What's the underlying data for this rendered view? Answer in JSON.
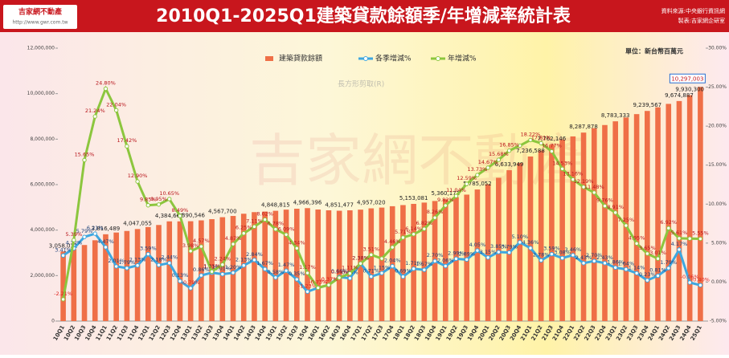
{
  "logo": {
    "name": "吉家網不動產",
    "url": "http://www.gwr.com.tw"
  },
  "source": [
    "資料來源:中央銀行資訊網",
    "製表:吉家網企研室"
  ],
  "watermark": "吉家網不動產",
  "tooltip": "長方形剪取(R)",
  "chart_data": {
    "type": "bar_line",
    "title": "2010Q1-2025Q1建築貸款餘額季/年增減率統計表",
    "unit": "單位：新台幣百萬元",
    "legend": "top",
    "grid": false,
    "categories": [
      "10Q1",
      "10Q2",
      "10Q3",
      "10Q4",
      "11Q1",
      "11Q2",
      "11Q3",
      "11Q4",
      "12Q1",
      "12Q2",
      "12Q3",
      "12Q4",
      "13Q1",
      "13Q2",
      "13Q3",
      "13Q4",
      "14Q1",
      "14Q2",
      "14Q3",
      "14Q4",
      "15Q1",
      "15Q2",
      "15Q3",
      "15Q4",
      "16Q1",
      "16Q2",
      "16Q3",
      "16Q4",
      "17Q1",
      "17Q2",
      "17Q3",
      "17Q4",
      "18Q1",
      "18Q2",
      "18Q3",
      "18Q4",
      "19Q1",
      "19Q2",
      "19Q3",
      "19Q4",
      "20Q1",
      "20Q2",
      "20Q3",
      "20Q4",
      "21Q1",
      "21Q2",
      "21Q3",
      "21Q4",
      "22Q1",
      "22Q2",
      "22Q3",
      "22Q4",
      "23Q1",
      "23Q2",
      "23Q3",
      "23Q4",
      "24Q1",
      "24Q2",
      "24Q3",
      "24Q4",
      "25Q1"
    ],
    "ylim": [
      0,
      12000000
    ],
    "yticks": [
      0,
      {
        "value": 2000000,
        "label": "2,000,000"
      },
      {
        "value": 4000000,
        "label": "4,000,000"
      },
      {
        "value": 6000000,
        "label": "6,000,000"
      },
      {
        "value": 8000000,
        "label": "8,000,000"
      },
      {
        "value": 10000000,
        "label": "10,000,000"
      },
      {
        "value": 12000000,
        "label": "12,000,000"
      }
    ],
    "y2lim": [
      -5,
      30
    ],
    "y2ticks": [
      {
        "value": -5,
        "label": "-5.00%"
      },
      {
        "value": 0,
        "label": "0.00%"
      },
      {
        "value": 5,
        "label": "5.00%"
      },
      {
        "value": 10,
        "label": "10.00%"
      },
      {
        "value": 15,
        "label": "15.00%"
      },
      {
        "value": 20,
        "label": "20.00%"
      },
      {
        "value": 25,
        "label": "25.00%"
      },
      {
        "value": 30,
        "label": "30.00%"
      }
    ],
    "series": [
      {
        "name": "建築貸款餘額",
        "kind": "bar",
        "color": "#ef6f47",
        "values": [
          3058031,
          3162000,
          3345000,
          3553000,
          3816489,
          3893000,
          3962000,
          4047055,
          4135000,
          4225000,
          4384667,
          4385000,
          4390546,
          4428000,
          4481000,
          4567700,
          4622000,
          4720000,
          4790000,
          4815000,
          4848815,
          4900000,
          4940000,
          4966396,
          4905000,
          4870000,
          4851477,
          4870000,
          4900000,
          4957020,
          4990000,
          5050000,
          5100000,
          5153081,
          5210000,
          5280000,
          5360171,
          5450000,
          5560000,
          5785052,
          6020000,
          6300000,
          6633949,
          6950000,
          7236588,
          7500000,
          7762146,
          7980000,
          8120000,
          8287878,
          8480000,
          8620000,
          8783333,
          8950000,
          9100000,
          9239567,
          9400000,
          9550000,
          9674887,
          9930300,
          10297003
        ],
        "value_labels": [
          "3,058,031",
          null,
          null,
          null,
          "3,816,489",
          null,
          null,
          "4,047,055",
          null,
          null,
          "4,384,667",
          null,
          "4,390,546",
          null,
          null,
          "4,567,700",
          null,
          null,
          null,
          null,
          "4,848,815",
          null,
          null,
          "4,966,396",
          null,
          null,
          "4,851,477",
          null,
          null,
          "4,957,020",
          null,
          null,
          null,
          "5,153,081",
          null,
          null,
          "5,360,171",
          null,
          null,
          "5,785,052",
          null,
          null,
          "6,633,949",
          null,
          "7,236,588",
          null,
          "7,762,146",
          null,
          null,
          "8,287,878",
          null,
          null,
          "8,783,333",
          null,
          null,
          "9,239,567",
          null,
          null,
          "9,674,887",
          "9,930,300",
          "10,297,003"
        ]
      },
      {
        "name": "各季增減%",
        "kind": "line",
        "axis": "y2",
        "color": "#3ea7e0",
        "values": [
          3.41,
          4.32,
          5.79,
          6.21,
          4.47,
          2.01,
          1.79,
          2.13,
          3.59,
          2.18,
          2.44,
          0.13,
          -0.79,
          0.86,
          1.21,
          1.01,
          1.2,
          2.13,
          2.84,
          1.67,
          0.58,
          1.47,
          0.35,
          -1.23,
          -0.73,
          -0.37,
          0.66,
          0.49,
          2.38,
          0.71,
          1.15,
          2.04,
          0.69,
          1.71,
          1.57,
          2.7,
          2.06,
          2.99,
          2.89,
          4.05,
          3.15,
          3.85,
          3.79,
          5.1,
          4.36,
          2.78,
          3.59,
          3.08,
          3.46,
          2.43,
          2.7,
          2.43,
          1.86,
          1.64,
          1.14,
          0.23,
          0.81,
          1.79,
          4.17,
          -0.06,
          -0.4
        ],
        "value_labels": [
          "3.41%",
          "4.32%",
          "5.79%",
          "6.21%",
          "4.47%",
          "2.01%",
          "1.79%",
          "2.13%",
          "3.59%",
          "2.18%",
          "2.44%",
          "0.13%",
          "-0.79%",
          "0.86%",
          "1.21%",
          "1.01%",
          "1.20%",
          "2.13%",
          "2.84%",
          "1.67%",
          "0.58%",
          "1.47%",
          "0.35%",
          "-1.23%",
          "-0.73%",
          "-0.37%",
          "0.66%",
          "0.49%",
          "2.38%",
          "0.71%",
          "1.15%",
          "2.04%",
          "0.69%",
          "1.71%",
          "1.57%",
          "2.70%",
          "2.06%",
          "2.99%",
          "2.89%",
          "4.05%",
          "3.15%",
          "3.85%",
          "3.79%",
          "5.10%",
          "4.36%",
          "2.78%",
          "3.59%",
          "3.08%",
          "3.46%",
          "2.43%",
          "2.70%",
          "2.43%",
          "1.86%",
          "1.64%",
          "1.14%",
          "0.23%",
          "0.81%",
          "1.79%",
          "4.17%",
          "-0.06%",
          "-0.40%"
        ]
      },
      {
        "name": "年增減%",
        "kind": "line",
        "axis": "y2",
        "color": "#8cc63e",
        "values": [
          -2.21,
          5.39,
          15.65,
          21.24,
          24.8,
          22.04,
          17.42,
          12.9,
          9.85,
          9.95,
          10.65,
          8.49,
          3.98,
          4.57,
          1.35,
          2.24,
          4.87,
          6.25,
          7.11,
          8.02,
          6.78,
          6.09,
          4.34,
          1.17,
          -0.73,
          -0.37,
          0.56,
          1.11,
          2.38,
          3.51,
          3.02,
          4.46,
          5.71,
          6.14,
          6.82,
          8.26,
          9.82,
          11.04,
          12.59,
          13.73,
          14.67,
          15.68,
          16.85,
          17.5,
          18.22,
          17.81,
          16.77,
          14.53,
          13.16,
          12.19,
          11.48,
          9.76,
          8.91,
          7.25,
          4.95,
          3.65,
          3.01,
          6.92,
          5.61,
          5.58,
          5.55
        ],
        "value_labels": [
          "-2.21%",
          "5.39%",
          "15.65%",
          "21.24%",
          "24.80%",
          "22.04%",
          "17.42%",
          "12.90%",
          "9.85%",
          "9.95%",
          "10.65%",
          "8.49%",
          "3.98%",
          "4.57%",
          "1.35%",
          "2.24%",
          "4.87%",
          "6.25%",
          "7.11%",
          "8.02%",
          "6.78%",
          "6.09%",
          "4.34%",
          "1.17%",
          "-0.73%",
          "-0.37%",
          "0.56%",
          "1.11%",
          "2.38%",
          "3.51%",
          null,
          "4.46%",
          "5.71%",
          "6.14%",
          "6.82%",
          "8.26%",
          "9.82%",
          "11.04%",
          "12.59%",
          "13.73%",
          "14.67%",
          "15.68%",
          "16.85%",
          null,
          "18.22%",
          "17.81%",
          "16.77%",
          "14.53%",
          "13.16%",
          "12.19%",
          "11.48%",
          "9.76%",
          "8.91%",
          "7.25%",
          "4.95%",
          "3.65%",
          "3.01%",
          "6.92%",
          "5.61%",
          null,
          "5.55%"
        ]
      }
    ]
  }
}
